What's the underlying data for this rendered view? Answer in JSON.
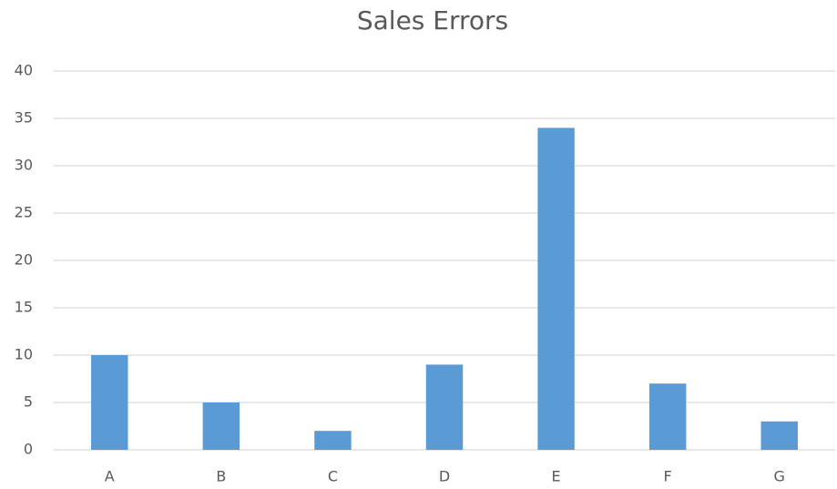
{
  "chart_data": {
    "type": "bar",
    "title": "Sales Errors",
    "categories": [
      "A",
      "B",
      "C",
      "D",
      "E",
      "F",
      "G"
    ],
    "values": [
      10,
      5,
      2,
      9,
      34,
      7,
      3
    ],
    "color": "#5b9bd5",
    "ylim": [
      0,
      40
    ],
    "yticks": [
      0,
      5,
      10,
      15,
      20,
      25,
      30,
      35,
      40
    ],
    "grid": true
  }
}
